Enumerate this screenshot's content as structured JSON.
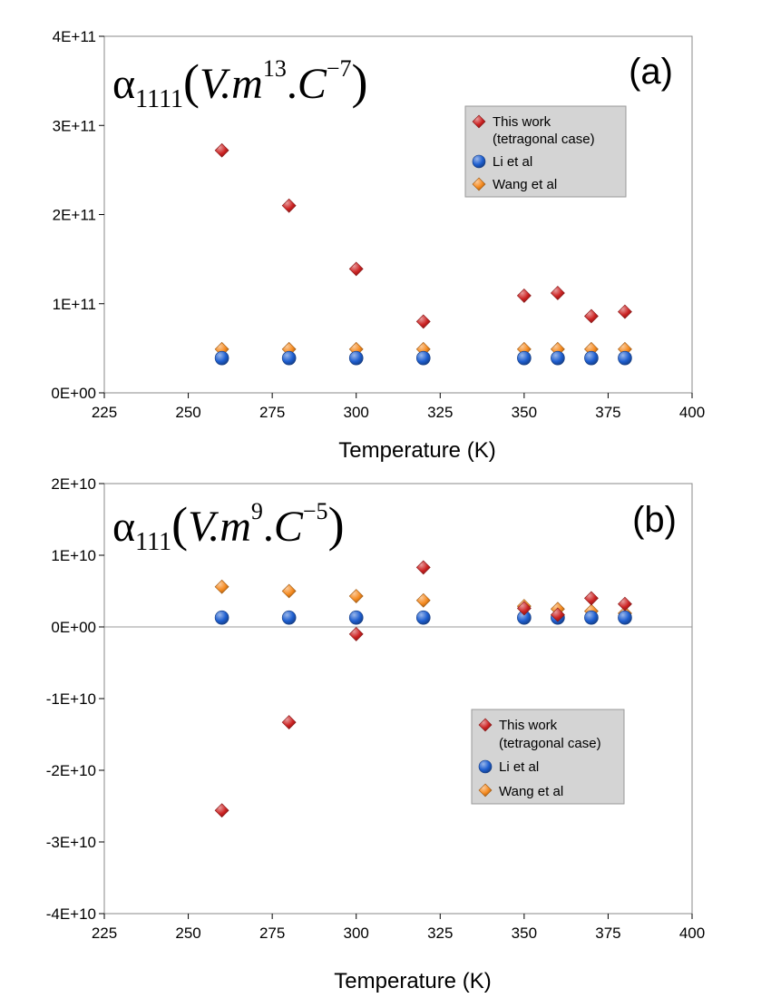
{
  "chart_data": [
    {
      "type": "scatter",
      "panel_label": "(a)",
      "title_formula": {
        "symbol": "α",
        "subscript": "1111",
        "open": "(",
        "v": "V.",
        "m": "m",
        "m_exp": "13",
        "dot": ".",
        "c": "C",
        "c_exp": "−7",
        "close": ")"
      },
      "xlabel": "Temperature (K)",
      "xlim": [
        225,
        400
      ],
      "xticks": [
        225,
        250,
        275,
        300,
        325,
        350,
        375,
        400
      ],
      "ylim": [
        0,
        400000000000
      ],
      "yticks": [
        0,
        100000000000,
        200000000000,
        300000000000,
        400000000000
      ],
      "ytick_labels": [
        "0E+00",
        "1E+11",
        "2E+11",
        "3E+11",
        "4E+11"
      ],
      "zero_line": false,
      "legend": {
        "position": "top-right"
      },
      "series": [
        {
          "name": "This work\n(tetragonal case)",
          "label_lines": [
            "This work",
            "(tetragonal case)"
          ],
          "marker": "diamond",
          "color": "#cc2222",
          "x": [
            260,
            280,
            300,
            320,
            350,
            360,
            370,
            380
          ],
          "y": [
            272000000000,
            210000000000,
            139000000000,
            80000000000,
            109000000000,
            112000000000,
            86000000000,
            91000000000
          ]
        },
        {
          "name": "Li et al",
          "label_lines": [
            "Li et al"
          ],
          "marker": "circle",
          "color": "#1f5fd0",
          "x": [
            260,
            280,
            300,
            320,
            350,
            360,
            370,
            380
          ],
          "y": [
            39000000000,
            39000000000,
            39000000000,
            39000000000,
            39000000000,
            39000000000,
            39000000000,
            39000000000
          ]
        },
        {
          "name": "Wang et al",
          "label_lines": [
            "Wang et al"
          ],
          "marker": "diamond",
          "color": "#f58a1f",
          "x": [
            260,
            280,
            300,
            320,
            350,
            360,
            370,
            380
          ],
          "y": [
            49000000000,
            49000000000,
            49000000000,
            49000000000,
            49000000000,
            49000000000,
            49000000000,
            49000000000
          ]
        }
      ]
    },
    {
      "type": "scatter",
      "panel_label": "(b)",
      "title_formula": {
        "symbol": "α",
        "subscript": "111",
        "open": "(",
        "v": "V.",
        "m": "m",
        "m_exp": "9",
        "dot": ".",
        "c": "C",
        "c_exp": "−5",
        "close": ")"
      },
      "xlabel": "Temperature (K)",
      "xlim": [
        225,
        400
      ],
      "xticks": [
        225,
        250,
        275,
        300,
        325,
        350,
        375,
        400
      ],
      "ylim": [
        -40000000000,
        20000000000
      ],
      "yticks": [
        -40000000000,
        -30000000000,
        -20000000000,
        -10000000000,
        0,
        10000000000,
        20000000000
      ],
      "ytick_labels": [
        "-4E+10",
        "-3E+10",
        "-2E+10",
        "-1E+10",
        "0E+00",
        "1E+10",
        "2E+10"
      ],
      "zero_line": true,
      "legend": {
        "position": "middle-right"
      },
      "series": [
        {
          "name": "This work\n(tetragonal case)",
          "label_lines": [
            "This work",
            "(tetragonal case)"
          ],
          "marker": "diamond",
          "color": "#cc2222",
          "x": [
            260,
            280,
            300,
            320,
            350,
            360,
            370,
            380
          ],
          "y": [
            -25600000000,
            -13300000000,
            -1000000000,
            8300000000,
            2600000000,
            1700000000,
            4000000000,
            3200000000
          ]
        },
        {
          "name": "Li et al",
          "label_lines": [
            "Li et al"
          ],
          "marker": "circle",
          "color": "#1f5fd0",
          "x": [
            260,
            280,
            300,
            320,
            350,
            360,
            370,
            380
          ],
          "y": [
            1300000000,
            1300000000,
            1300000000,
            1300000000,
            1300000000,
            1300000000,
            1300000000,
            1300000000
          ]
        },
        {
          "name": "Wang et al",
          "label_lines": [
            "Wang et al"
          ],
          "marker": "diamond",
          "color": "#f58a1f",
          "x": [
            260,
            280,
            300,
            320,
            350,
            360,
            370,
            380
          ],
          "y": [
            5600000000,
            5000000000,
            4300000000,
            3700000000,
            2900000000,
            2500000000,
            2200000000,
            1900000000
          ]
        }
      ]
    }
  ]
}
